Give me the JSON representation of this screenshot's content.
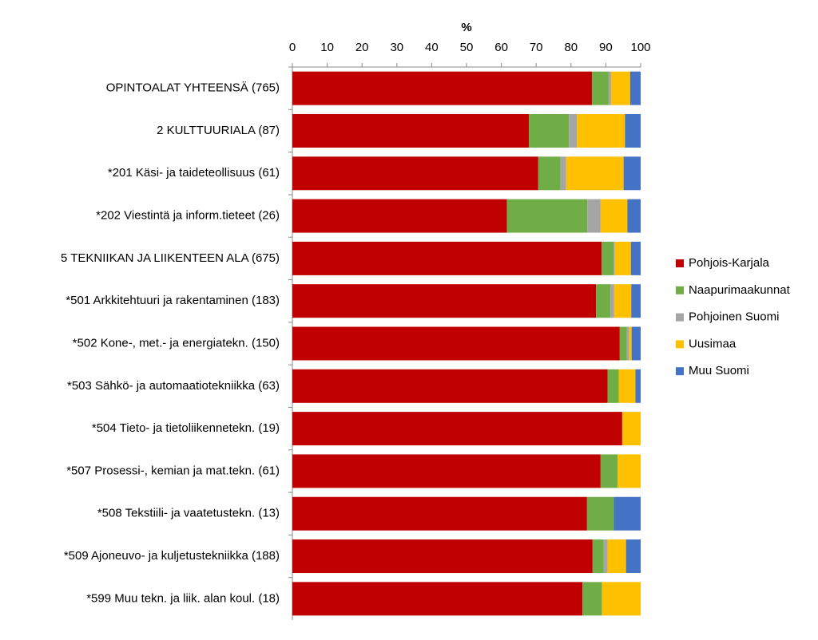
{
  "chart_data": {
    "type": "stacked-barh",
    "x_label": "%",
    "categories": [
      "OPINTOALAT YHTEENSÄ (765)",
      "2 KULTTUURIALA (87)",
      "*201 Käsi- ja taideteollisuus (61)",
      "*202 Viestintä ja inform.tieteet (26)",
      "5 TEKNIIKAN JA LIIKENTEEN ALA (675)",
      "*501 Arkkitehtuuri ja rakentaminen (183)",
      "*502 Kone-, met.- ja energiatekn. (150)",
      "*503 Sähkö- ja automaatiotekniikka (63)",
      "*504 Tieto- ja tietoliikennetekn. (19)",
      "*507 Prosessi-, kemian ja mat.tekn. (61)",
      "*508 Tekstiili- ja vaatetustekn. (13)",
      "*509 Ajoneuvo- ja kuljetustekniikka (188)",
      "*599 Muu tekn. ja liik. alan koul. (18)"
    ],
    "series": [
      {
        "name": "Pohjois-Karjala",
        "color": "#c00000",
        "values": [
          86.0,
          67.9,
          70.6,
          61.6,
          88.8,
          87.2,
          94.0,
          90.5,
          94.7,
          88.5,
          84.6,
          86.2,
          83.3
        ]
      },
      {
        "name": "Naapurimaakunnat",
        "color": "#70ad47",
        "values": [
          4.8,
          11.5,
          6.4,
          23.1,
          3.4,
          4.1,
          2.0,
          3.2,
          0,
          4.9,
          7.7,
          3.2,
          5.6
        ]
      },
      {
        "name": "Pohjoinen Suomi",
        "color": "#a5a5a5",
        "values": [
          0.7,
          2.3,
          1.6,
          3.8,
          0.4,
          1.1,
          0.7,
          0,
          0,
          0,
          0,
          1.1,
          0
        ]
      },
      {
        "name": "Uusimaa",
        "color": "#ffc000",
        "values": [
          5.5,
          13.8,
          16.5,
          7.7,
          4.6,
          4.9,
          0.7,
          4.8,
          5.3,
          6.6,
          0,
          5.3,
          11.1
        ]
      },
      {
        "name": "Muu Suomi",
        "color": "#4472c4",
        "values": [
          3.0,
          4.5,
          4.9,
          3.8,
          2.8,
          2.7,
          2.6,
          1.5,
          0,
          0,
          7.7,
          4.2,
          0
        ]
      }
    ],
    "xlim": [
      0,
      100
    ],
    "xticks": [
      0,
      10,
      20,
      30,
      40,
      50,
      60,
      70,
      80,
      90,
      100
    ],
    "legend": "right"
  }
}
